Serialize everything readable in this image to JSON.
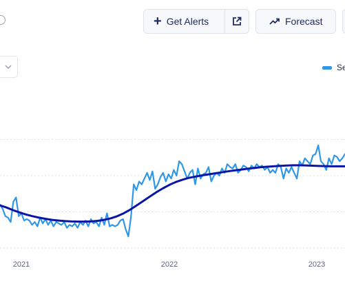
{
  "toolbar": {
    "alerts_label": "Get Alerts",
    "forecast_label": "Forecast",
    "icons": {
      "help": "help-circle-icon",
      "alerts": "plus-icon",
      "external": "external-link-icon",
      "forecast": "trend-up-icon",
      "dropdown": "chevron-down-icon"
    }
  },
  "legend": {
    "label": "Se"
  },
  "colors": {
    "series_line": "#2f97e6",
    "trend_line": "#0b15a5",
    "grid": "#dcdfe6",
    "button_text": "#1d2b63"
  },
  "chart_data": {
    "type": "line",
    "xlabel": "",
    "ylabel": "",
    "x_ticks": [
      "2021",
      "2022",
      "2023"
    ],
    "grid": "horizontal dashed",
    "series": [
      {
        "values": [
          30,
          27,
          22,
          21,
          18,
          32,
          35,
          22,
          24,
          19,
          20,
          19,
          16,
          18,
          15,
          21,
          17,
          20,
          16,
          19,
          15,
          18,
          17,
          16,
          18,
          14,
          16,
          15,
          17,
          14,
          18,
          16,
          19,
          15,
          20,
          17,
          18,
          15,
          21,
          16,
          24,
          15,
          16,
          15,
          16,
          19,
          20,
          13,
          8,
          22,
          44,
          40,
          46,
          44,
          48,
          52,
          47,
          53,
          41,
          44,
          49,
          52,
          46,
          51,
          48,
          54,
          50,
          60,
          58,
          53,
          48,
          52,
          54,
          44,
          55,
          48,
          51,
          52,
          56,
          46,
          50,
          52,
          50,
          55,
          52,
          58,
          56,
          55,
          58,
          52,
          54,
          57,
          56,
          53,
          57,
          55,
          58,
          56,
          57,
          54,
          56,
          52,
          54,
          52,
          58,
          56,
          48,
          55,
          52,
          56,
          52,
          48,
          60,
          57,
          62,
          60,
          58,
          64,
          65,
          71,
          60,
          58,
          54,
          62,
          58,
          64,
          63,
          60,
          62,
          65
        ]
      },
      {
        "values": [
          29.5,
          28,
          26.2,
          24.6,
          23.2,
          22,
          21,
          20.2,
          19.5,
          19,
          18.6,
          18.4,
          18.3,
          18.3,
          18.4,
          18.8,
          19.5,
          20.5,
          22,
          24,
          26.5,
          29.5,
          32.5,
          35.5,
          38.5,
          41.2,
          43.6,
          45.6,
          47.2,
          48.5,
          49.4,
          50.2,
          50.9,
          51.6,
          52.3,
          53,
          53.6,
          54.2,
          54.8,
          55.3,
          55.8,
          56.2,
          56.5,
          56.8,
          57,
          57.2,
          57.2,
          57.1,
          56.9,
          56.7,
          56.6,
          56.5,
          56.5,
          56.5
        ]
      }
    ],
    "ylim": [
      0,
      100
    ]
  }
}
